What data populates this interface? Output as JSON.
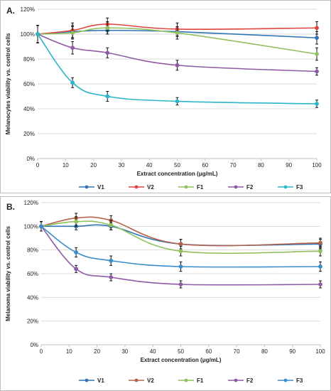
{
  "chart_data": [
    {
      "type": "line",
      "panel_label": "A.",
      "xlabel": "Extract concentration (μg/mL)",
      "ylabel": "Melanocytes viability vs. control cells",
      "xlim": [
        0,
        100
      ],
      "ylim": [
        0,
        120
      ],
      "x_ticks": [
        "0",
        "10",
        "20",
        "30",
        "40",
        "50",
        "60",
        "70",
        "80",
        "90",
        "100"
      ],
      "y_ticks": [
        "0%",
        "20%",
        "40%",
        "60%",
        "80%",
        "100%",
        "120%"
      ],
      "grid": "horizontal",
      "legend_position": "bottom",
      "x": [
        0,
        12.5,
        25,
        50,
        100
      ],
      "series": [
        {
          "name": "V1",
          "color": "#2e75b6",
          "values": [
            100,
            102,
            103,
            102,
            97
          ],
          "errors": [
            7,
            5,
            3,
            4,
            5
          ]
        },
        {
          "name": "V2",
          "color": "#e0443e",
          "values": [
            100,
            103,
            108,
            104,
            105
          ],
          "errors": [
            7,
            6,
            5,
            5,
            5
          ]
        },
        {
          "name": "F1",
          "color": "#8fc05b",
          "values": [
            100,
            101,
            105,
            101,
            84
          ],
          "errors": [
            7,
            5,
            5,
            5,
            5
          ]
        },
        {
          "name": "F2",
          "color": "#8e5ba5",
          "values": [
            100,
            89,
            85,
            75,
            70
          ],
          "errors": [
            7,
            5,
            4,
            4,
            3
          ]
        },
        {
          "name": "F3",
          "color": "#2bb5c8",
          "values": [
            100,
            61,
            50,
            46,
            44
          ],
          "errors": [
            7,
            4,
            4,
            3,
            3
          ]
        }
      ]
    },
    {
      "type": "line",
      "panel_label": "B.",
      "xlabel": "Extract concentration (μg/mL)",
      "ylabel": "Melanoma viability vs. control cells",
      "xlim": [
        0,
        100
      ],
      "ylim": [
        0,
        120
      ],
      "x_ticks": [
        "0",
        "10",
        "20",
        "30",
        "40",
        "50",
        "60",
        "70",
        "80",
        "90",
        "100"
      ],
      "y_ticks": [
        "0%",
        "20%",
        "40%",
        "60%",
        "80%",
        "100%",
        "120%"
      ],
      "grid": "horizontal",
      "legend_position": "bottom",
      "x": [
        0,
        12.5,
        25,
        50,
        100
      ],
      "series": [
        {
          "name": "V1",
          "color": "#2e75b6",
          "values": [
            100,
            100,
            100,
            85,
            85
          ],
          "errors": [
            4,
            3,
            3,
            4,
            4
          ]
        },
        {
          "name": "V2",
          "color": "#b5604a",
          "values": [
            100,
            107,
            105,
            85,
            86
          ],
          "errors": [
            4,
            4,
            4,
            4,
            4
          ]
        },
        {
          "name": "F1",
          "color": "#8fc05b",
          "values": [
            100,
            104,
            101,
            79,
            79
          ],
          "errors": [
            4,
            4,
            4,
            4,
            4
          ]
        },
        {
          "name": "F2",
          "color": "#8e5ba5",
          "values": [
            100,
            64,
            57,
            51,
            51
          ],
          "errors": [
            4,
            3,
            3,
            3,
            3
          ]
        },
        {
          "name": "F3",
          "color": "#3a8dc9",
          "values": [
            100,
            78,
            71,
            66,
            66
          ],
          "errors": [
            4,
            4,
            4,
            4,
            4
          ]
        }
      ]
    }
  ]
}
